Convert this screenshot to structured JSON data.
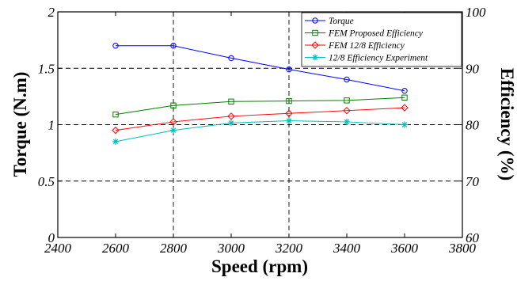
{
  "chart_data": {
    "type": "line",
    "xlabel": "Speed (rpm)",
    "ylabel_left": "Torque (N.m)",
    "ylabel_right": "Efficiency (%)",
    "xlim": [
      2400,
      3800
    ],
    "xticks": [
      2400,
      2600,
      2800,
      3000,
      3200,
      3400,
      3600,
      3800
    ],
    "ylim_left": [
      0,
      2
    ],
    "yticks_left": [
      "0",
      "0.5",
      "1",
      "1.5",
      "2"
    ],
    "ylim_right": [
      60,
      100
    ],
    "yticks_right": [
      "60",
      "70",
      "80",
      "90",
      "100"
    ],
    "grid": "dashed, at x=2800 and x=3200 and at every left-axis tick",
    "legend_position": "top-right",
    "series": [
      {
        "name": "Torque",
        "axis": "left",
        "color": "#0000ff",
        "marker": "circle",
        "x": [
          2600,
          2800,
          3000,
          3200,
          3400,
          3600
        ],
        "y": [
          1.7,
          1.7,
          1.59,
          1.49,
          1.4,
          1.3
        ]
      },
      {
        "name": "FEM Proposed Efficiency",
        "axis": "right",
        "color": "#008000",
        "marker": "square",
        "x": [
          2600,
          2800,
          3000,
          3200,
          3400,
          3600
        ],
        "y": [
          81.8,
          83.4,
          84.1,
          84.2,
          84.3,
          84.8
        ]
      },
      {
        "name": "FEM 12/8 Efficiency",
        "axis": "right",
        "color": "#ff0000",
        "marker": "diamond",
        "x": [
          2600,
          2800,
          3000,
          3200,
          3400,
          3600
        ],
        "y": [
          79.0,
          80.5,
          81.5,
          82.0,
          82.5,
          83.0
        ]
      },
      {
        "name": "12/8 Efficiency Experiment",
        "axis": "right",
        "color": "#00bfbf",
        "marker": "star",
        "x": [
          2600,
          2800,
          3000,
          3200,
          3400,
          3600
        ],
        "y": [
          77.0,
          79.0,
          80.3,
          80.7,
          80.5,
          80.0
        ]
      }
    ]
  }
}
